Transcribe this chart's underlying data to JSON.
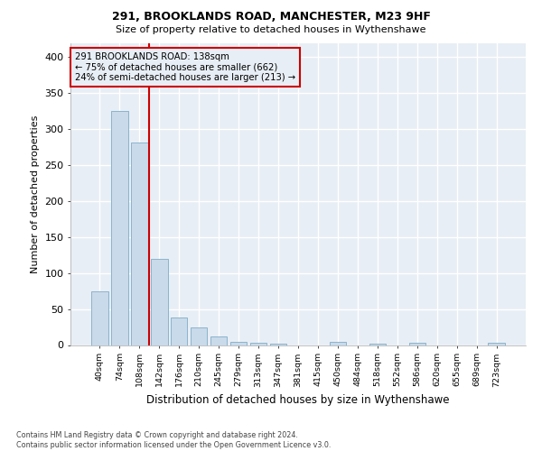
{
  "title1": "291, BROOKLANDS ROAD, MANCHESTER, M23 9HF",
  "title2": "Size of property relative to detached houses in Wythenshawe",
  "xlabel": "Distribution of detached houses by size in Wythenshawe",
  "ylabel": "Number of detached properties",
  "footnote": "Contains HM Land Registry data © Crown copyright and database right 2024.\nContains public sector information licensed under the Open Government Licence v3.0.",
  "bar_labels": [
    "40sqm",
    "74sqm",
    "108sqm",
    "142sqm",
    "176sqm",
    "210sqm",
    "245sqm",
    "279sqm",
    "313sqm",
    "347sqm",
    "381sqm",
    "415sqm",
    "450sqm",
    "484sqm",
    "518sqm",
    "552sqm",
    "586sqm",
    "620sqm",
    "655sqm",
    "689sqm",
    "723sqm"
  ],
  "bar_values": [
    75,
    325,
    282,
    120,
    38,
    25,
    12,
    5,
    3,
    2,
    0,
    0,
    5,
    0,
    2,
    0,
    3,
    0,
    0,
    0,
    3
  ],
  "bar_color": "#c9daea",
  "bar_edge_color": "#8ab4cc",
  "vline_x": 2.5,
  "vline_color": "#cc0000",
  "annotation_lines": [
    "291 BROOKLANDS ROAD: 138sqm",
    "← 75% of detached houses are smaller (662)",
    "24% of semi-detached houses are larger (213) →"
  ],
  "annotation_box_color": "#cc0000",
  "ylim": [
    0,
    420
  ],
  "yticks": [
    0,
    50,
    100,
    150,
    200,
    250,
    300,
    350,
    400
  ],
  "bg_color": "#ffffff",
  "plot_bg_color": "#e8eef5",
  "grid_color": "#ffffff"
}
